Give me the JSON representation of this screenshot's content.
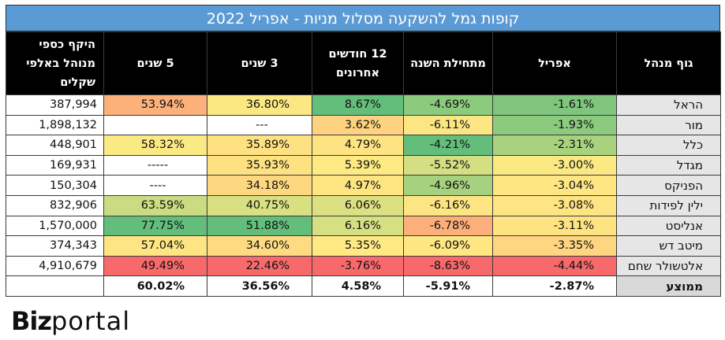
{
  "title": "קופות גמל להשקעה מסלול מניות - אפריל 2022",
  "headers": {
    "aum": "היקף כספי מנוהל באלפי שקלים",
    "y5": "5 שנים",
    "y3": "3 שנים",
    "m12": "12 חודשים אחרונים",
    "ytd": "מתחילת השנה",
    "april": "אפריל",
    "manager": "גוף מנהל"
  },
  "rows": [
    {
      "manager": "הראל",
      "april": "-1.61%",
      "ytd": "-4.69%",
      "m12": "8.67%",
      "y3": "36.80%",
      "y5": "53.94%",
      "aum": "387,994",
      "colors": {
        "april": "#7fc57d",
        "ytd": "#8ccb7e",
        "m12": "#63be7b",
        "y3": "#fbe883",
        "y5": "#fcb17b"
      }
    },
    {
      "manager": "מור",
      "april": "-1.93%",
      "ytd": "-6.11%",
      "m12": "3.62%",
      "y3": "---",
      "y5": "",
      "aum": "1,898,132",
      "colors": {
        "april": "#8ccb7e",
        "ytd": "#fbe683",
        "m12": "#fed280",
        "y3": "#ffffff",
        "y5": "#ffffff"
      }
    },
    {
      "manager": "כלל",
      "april": "-2.31%",
      "ytd": "-4.21%",
      "m12": "4.79%",
      "y3": "35.89%",
      "y5": "58.32%",
      "aum": "448,901",
      "colors": {
        "april": "#a9d27f",
        "ytd": "#63be7b",
        "m12": "#fee382",
        "y3": "#fee282",
        "y5": "#fbe983"
      }
    },
    {
      "manager": "מגדל",
      "april": "-3.00%",
      "ytd": "-5.52%",
      "m12": "5.39%",
      "y3": "35.93%",
      "y5": "-----",
      "aum": "169,931",
      "colors": {
        "april": "#fbe983",
        "ytd": "#d3df82",
        "m12": "#feea83",
        "y3": "#fee282",
        "y5": "#ffffff"
      }
    },
    {
      "manager": "הפניקס",
      "april": "-3.04%",
      "ytd": "-4.96%",
      "m12": "4.97%",
      "y3": "34.18%",
      "y5": "----",
      "aum": "150,304",
      "colors": {
        "april": "#fee683",
        "ytd": "#a6d27f",
        "m12": "#fee582",
        "y3": "#fed881",
        "y5": "#ffffff"
      }
    },
    {
      "manager": "ילין לפידות",
      "april": "-3.08%",
      "ytd": "-6.16%",
      "m12": "6.06%",
      "y3": "40.75%",
      "y5": "63.59%",
      "aum": "832,906",
      "colors": {
        "april": "#fee482",
        "ytd": "#fee583",
        "m12": "#dbe182",
        "y3": "#d9e082",
        "y5": "#c9dc81"
      }
    },
    {
      "manager": "אנליסט",
      "april": "-3.11%",
      "ytd": "-6.78%",
      "m12": "6.16%",
      "y3": "51.88%",
      "y5": "77.75%",
      "aum": "1,570,000",
      "colors": {
        "april": "#fee382",
        "ytd": "#fcaf7a",
        "m12": "#d6e082",
        "y3": "#63be7b",
        "y5": "#63be7b"
      }
    },
    {
      "manager": "מיטב דש",
      "april": "-3.35%",
      "ytd": "-6.09%",
      "m12": "5.35%",
      "y3": "34.60%",
      "y5": "57.04%",
      "aum": "374,343",
      "colors": {
        "april": "#fed581",
        "ytd": "#fee783",
        "m12": "#fee983",
        "y3": "#fedb81",
        "y5": "#fde583"
      }
    },
    {
      "manager": "אלטשולר שחם",
      "april": "-4.44%",
      "ytd": "-8.63%",
      "m12": "-3.76%",
      "y3": "22.46%",
      "y5": "49.49%",
      "aum": "4,910,679",
      "colors": {
        "april": "#f8696b",
        "ytd": "#f8696b",
        "m12": "#f8696b",
        "y3": "#f8696b",
        "y5": "#f8696b"
      }
    }
  ],
  "average": {
    "manager": "ממוצע",
    "april": "-2.87%",
    "ytd": "-5.91%",
    "m12": "4.58%",
    "y3": "36.56%",
    "y5": "60.02%",
    "aum": ""
  },
  "logo": {
    "biz": "Biz",
    "portal": "portal"
  }
}
